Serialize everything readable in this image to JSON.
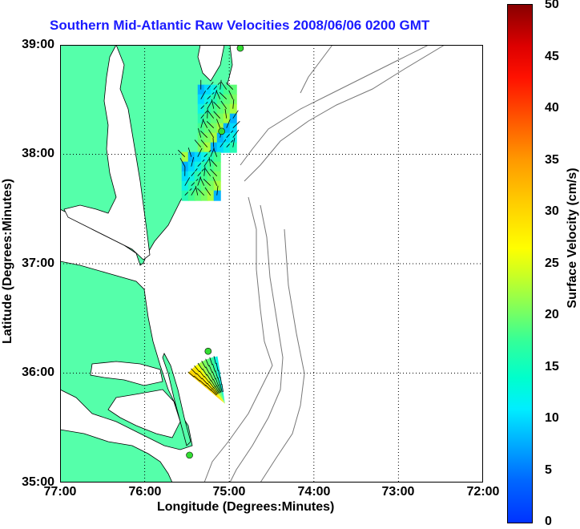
{
  "title": "Southern Mid-Atlantic Raw Velocities 2008/06/06 0200 GMT",
  "xlabel": "Longitude (Degrees:Minutes)",
  "ylabel": "Latitude (Degrees:Minutes)",
  "colorbar_label": "Surface Velocity (cm/s)",
  "x_ticks": [
    "77:00",
    "76:00",
    "75:00",
    "74:00",
    "73:00",
    "72:00"
  ],
  "y_ticks": [
    "39:00",
    "38:00",
    "37:00",
    "36:00",
    "35:00"
  ],
  "colorbar_ticks": [
    "50",
    "45",
    "40",
    "35",
    "30",
    "25",
    "20",
    "15",
    "10",
    "5",
    "0"
  ],
  "colors": {
    "land": "#55ffaa",
    "title": "#1a1aff",
    "station": "#33dd33"
  },
  "map": {
    "lon_range": [
      -77,
      -72
    ],
    "lat_range": [
      35,
      39
    ],
    "velocity_range_cms": [
      0,
      50
    ],
    "stations": [
      {
        "lon": -74.87,
        "lat": 38.97
      },
      {
        "lon": -75.09,
        "lat": 38.21
      },
      {
        "lon": -75.25,
        "lat": 36.2
      },
      {
        "lon": -75.47,
        "lat": 35.25
      }
    ],
    "north_cluster": {
      "center_lon": -74.9,
      "center_lat": 38.05,
      "speeds_cms": [
        8,
        10,
        12,
        14,
        16,
        18,
        20,
        22
      ]
    },
    "south_cluster": {
      "center_lon": -75.05,
      "center_lat": 35.72,
      "speeds_cms": [
        12,
        15,
        18,
        20,
        22,
        25,
        28,
        30
      ]
    }
  }
}
